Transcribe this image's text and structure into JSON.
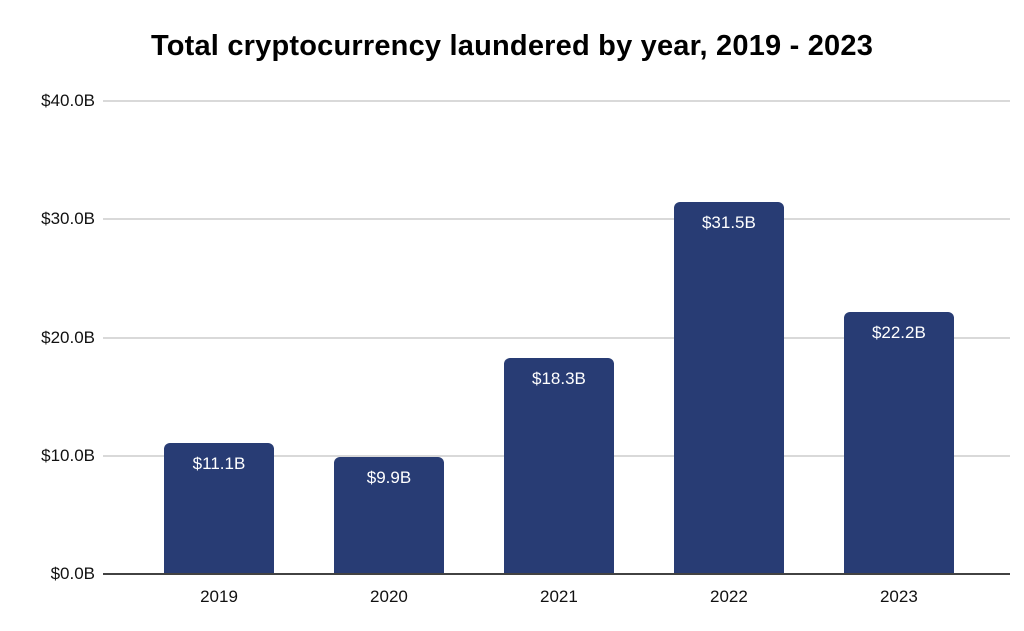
{
  "chart_data": {
    "type": "bar",
    "title": "Total cryptocurrency laundered by year, 2019 - 2023",
    "categories": [
      "2019",
      "2020",
      "2021",
      "2022",
      "2023"
    ],
    "values": [
      11.1,
      9.9,
      18.3,
      31.5,
      22.2
    ],
    "bar_labels": [
      "$11.1B",
      "$9.9B",
      "$18.3B",
      "$31.5B",
      "$22.2B"
    ],
    "xlabel": "",
    "ylabel": "",
    "ylim": [
      0,
      40
    ],
    "y_ticks": [
      {
        "value": 40,
        "label": "$40.0B"
      },
      {
        "value": 30,
        "label": "$30.0B"
      },
      {
        "value": 20,
        "label": "$20.0B"
      },
      {
        "value": 10,
        "label": "$10.0B"
      },
      {
        "value": 0,
        "label": "$0.0B"
      }
    ],
    "grid": true,
    "legend": "none",
    "colors": {
      "bar": "#283c74",
      "bar_label_text": "#ffffff",
      "gridline": "#d9d9d9",
      "baseline": "#424242",
      "axis_text": "#111111",
      "title_text": "#000000",
      "background": "#ffffff"
    }
  }
}
